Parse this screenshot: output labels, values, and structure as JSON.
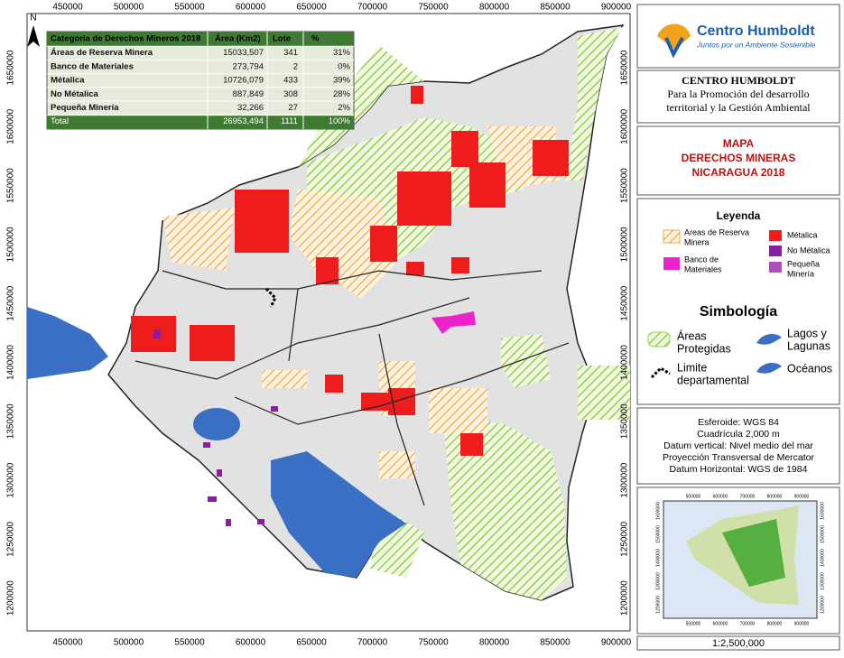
{
  "map": {
    "x_ticks": [
      "450000",
      "500000",
      "550000",
      "600000",
      "650000",
      "700000",
      "750000",
      "800000",
      "850000",
      "900000"
    ],
    "y_ticks": [
      "1650000",
      "1600000",
      "1550000",
      "1500000",
      "1450000",
      "1400000",
      "1350000",
      "1300000",
      "1250000",
      "1200000"
    ]
  },
  "table": {
    "header": [
      "Categoria de Derechos Mineros 2018",
      "Área  (Km2)",
      "Lote",
      "%"
    ],
    "rows": [
      [
        "Áreas de Reserva Minera",
        "15033,507",
        "341",
        "31%"
      ],
      [
        "Banco de Materiales",
        "273,794",
        "2",
        "0%"
      ],
      [
        "Métalica",
        "10726,079",
        "433",
        "39%"
      ],
      [
        "No Métalica",
        "887,849",
        "308",
        "28%"
      ],
      [
        "Pequeña Minería",
        "32,266",
        "27",
        "2%"
      ],
      [
        "Total",
        "26953,494",
        "1111",
        "100%"
      ]
    ]
  },
  "logo": {
    "name": "Centro Humboldt",
    "tagline": "Juntos por un Ambiente Sostenible"
  },
  "org": {
    "name": "CENTRO HUMBOLDT",
    "lines": [
      "Para la Promoción del desarrollo",
      "territorial y la Gestión Ambiental"
    ]
  },
  "title": {
    "lines": [
      "MAPA",
      "DERECHOS MINERAS",
      "NICARAGUA 2018"
    ]
  },
  "legend": {
    "title": "Leyenda",
    "items": [
      {
        "label": [
          "Areas de Reserva",
          "Minera"
        ]
      },
      {
        "label": [
          "Banco de",
          "Materiales"
        ]
      },
      {
        "label": [
          "Métalica"
        ]
      },
      {
        "label": [
          "No Métalica"
        ]
      },
      {
        "label": [
          "Pequeña",
          "Minería"
        ]
      }
    ]
  },
  "symbology": {
    "title": "Simbología",
    "items": [
      {
        "label": [
          "Áreas",
          "Protegidas"
        ]
      },
      {
        "label": [
          "Lagos y",
          "Lagunas"
        ]
      },
      {
        "label": [
          "Limite",
          "departamental"
        ]
      },
      {
        "label": [
          "Océanos"
        ]
      }
    ]
  },
  "datum": [
    "Esferoide: WGS 84",
    "Cuadrícula 2,000 m",
    "Datum vertical: Nivel medio del mar",
    "Proyección Transversal de Mercator",
    "Datum Horizontal: WGS de 1984"
  ],
  "inset": {
    "x_ticks": [
      "500000",
      "600000",
      "700000",
      "800000",
      "900000"
    ],
    "y_ticks": [
      "1200000",
      "1300000",
      "1400000",
      "1500000",
      "1600000"
    ]
  },
  "north": "N",
  "scale": "1:2,500,000"
}
